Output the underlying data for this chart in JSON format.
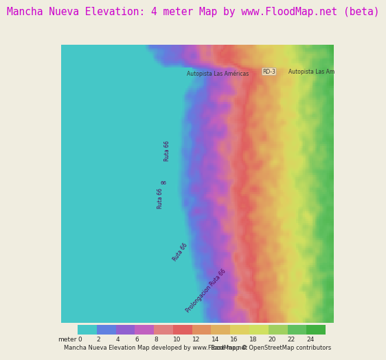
{
  "title": "Mancha Nueva Elevation: 4 meter Map by www.FloodMap.net (beta)",
  "title_color": "#cc00cc",
  "title_fontsize": 10.5,
  "background_color": "#f0ede0",
  "map_bg_color": "#45c8c8",
  "colorbar_label": "meter",
  "colorbar_ticks": [
    0,
    2,
    4,
    6,
    8,
    10,
    12,
    14,
    16,
    18,
    20,
    22,
    24
  ],
  "colorbar_colors": [
    "#45c8c8",
    "#6080e0",
    "#9060d0",
    "#c060c0",
    "#e08080",
    "#e06060",
    "#e09060",
    "#e0b060",
    "#e0d060",
    "#d0e060",
    "#a0d060",
    "#60c060",
    "#40b040"
  ],
  "footer_left": "Mancha Nueva Elevation Map developed by www.FloodMap.net",
  "footer_right": "Base map © OpenStreetMap contributors",
  "fig_width": 5.12,
  "fig_height": 5.82
}
